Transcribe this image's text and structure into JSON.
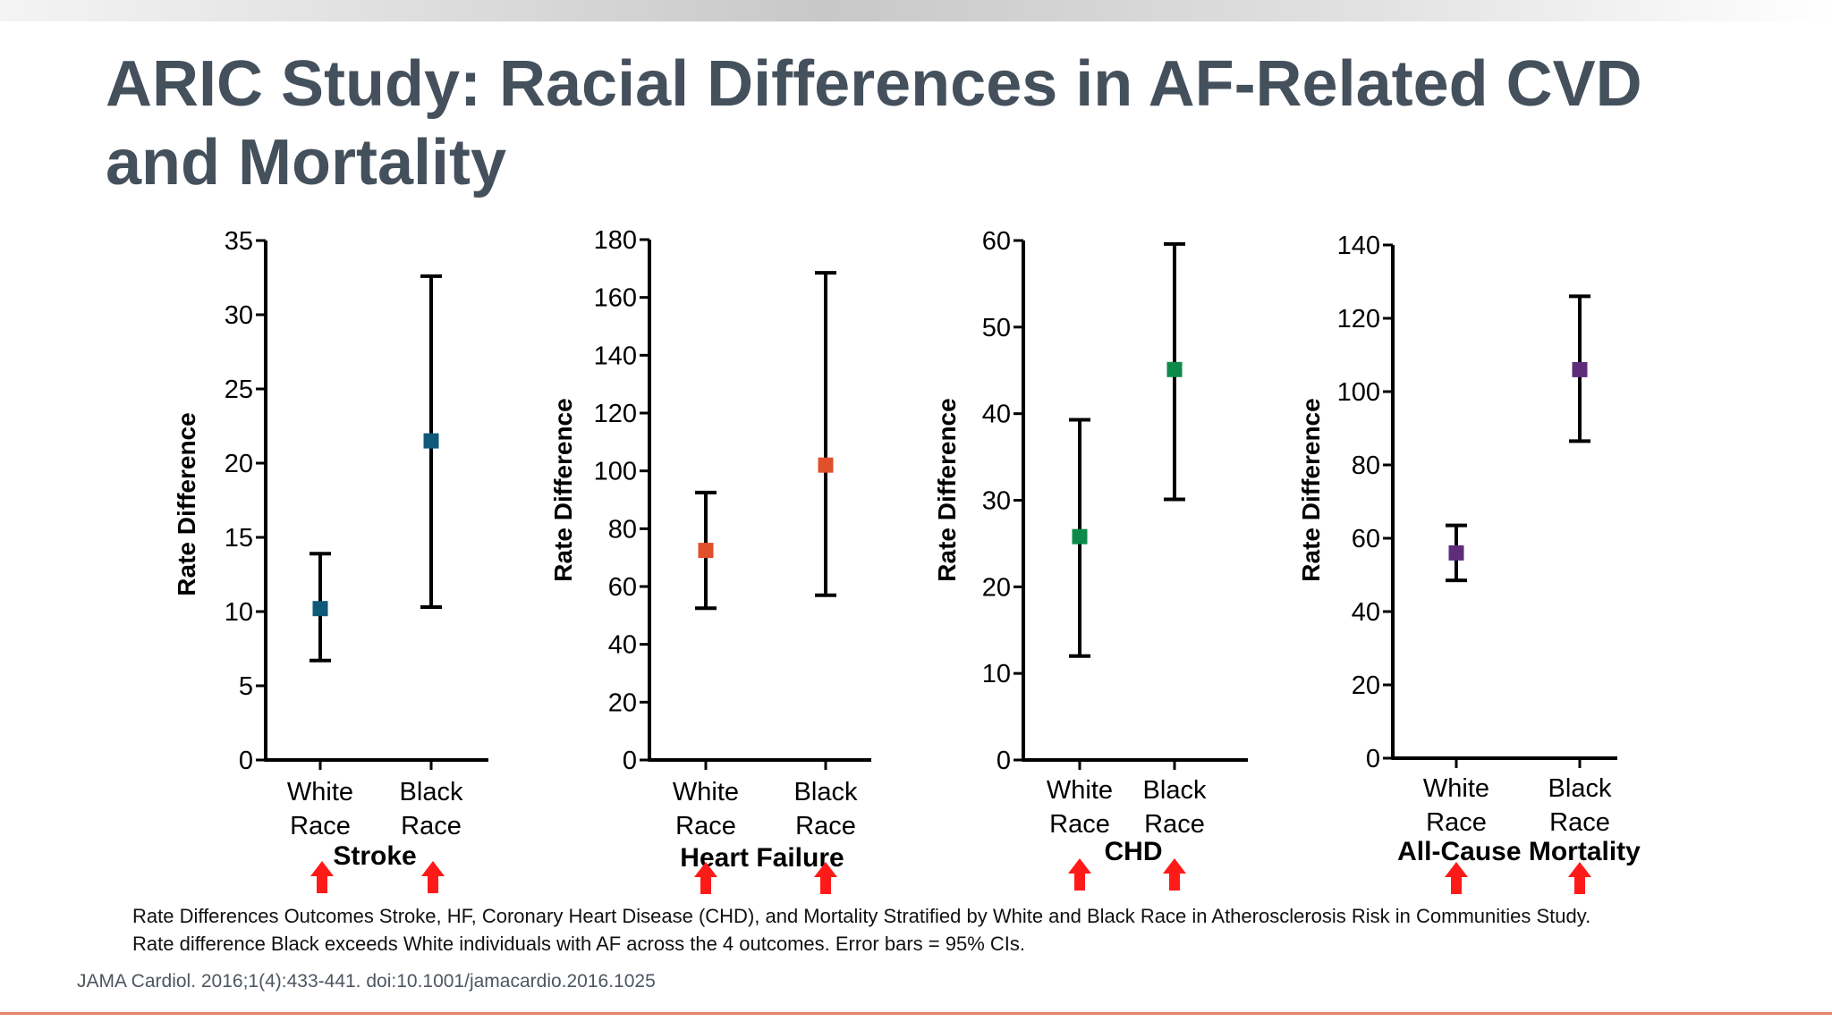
{
  "title": "ARIC Study: Racial Differences in AF-Related CVD and Mortality",
  "caption": {
    "line1": "Rate Differences Outcomes Stroke, HF, Coronary Heart Disease (CHD), and Mortality Stratified by White and Black Race in Atherosclerosis Risk in Communities Study.",
    "line2": "Rate difference Black exceeds White individuals with AF across the 4 outcomes. Error bars = 95% CIs."
  },
  "citation": "JAMA Cardiol. 2016;1(4):433-441. doi:10.1001/jamacardio.2016.1025",
  "colors": {
    "title": "#44505c",
    "arrow": "#ff1a1a",
    "bottom_rule": "#e7866a"
  },
  "chart_data": [
    {
      "type": "scatter",
      "title": "Stroke",
      "ylabel": "Rate Difference",
      "categories": [
        "White Race",
        "Black Race"
      ],
      "ylim": [
        0,
        35
      ],
      "yticks": [
        0,
        5,
        10,
        15,
        20,
        25,
        30,
        35
      ],
      "values": [
        10.2,
        21.5
      ],
      "ci_low": [
        6.7,
        10.3
      ],
      "ci_high": [
        13.9,
        32.6
      ],
      "color": "#0e5a78",
      "indicators": [
        "up-arrow",
        "up-arrow"
      ]
    },
    {
      "type": "scatter",
      "title": "Heart Failure",
      "ylabel": "Rate Difference",
      "categories": [
        "White Race",
        "Black Race"
      ],
      "ylim": [
        0,
        180
      ],
      "yticks": [
        0,
        20,
        40,
        60,
        80,
        100,
        120,
        140,
        160,
        180
      ],
      "values": [
        72.5,
        102
      ],
      "ci_low": [
        52.5,
        57
      ],
      "ci_high": [
        92.5,
        168.5
      ],
      "color": "#e0502a",
      "indicators": [
        "up-arrow",
        "up-arrow"
      ]
    },
    {
      "type": "scatter",
      "title": "CHD",
      "ylabel": "Rate Difference",
      "categories": [
        "White Race",
        "Black Race"
      ],
      "ylim": [
        0,
        60
      ],
      "yticks": [
        0,
        10,
        20,
        30,
        40,
        50,
        60
      ],
      "values": [
        25.8,
        45.1
      ],
      "ci_low": [
        12,
        30.1
      ],
      "ci_high": [
        39.3,
        59.6
      ],
      "color": "#0d8a4a",
      "indicators": [
        "up-arrow",
        "up-arrow"
      ]
    },
    {
      "type": "scatter",
      "title": "All-Cause Mortality",
      "ylabel": "Rate Difference",
      "categories": [
        "White Race",
        "Black Race"
      ],
      "ylim": [
        0,
        140
      ],
      "yticks": [
        0,
        20,
        40,
        60,
        80,
        100,
        120,
        140
      ],
      "values": [
        56,
        106
      ],
      "ci_low": [
        48.5,
        86.5
      ],
      "ci_high": [
        63.5,
        126
      ],
      "color": "#5e2d79",
      "indicators": [
        "up-arrow",
        "up-arrow"
      ]
    }
  ]
}
